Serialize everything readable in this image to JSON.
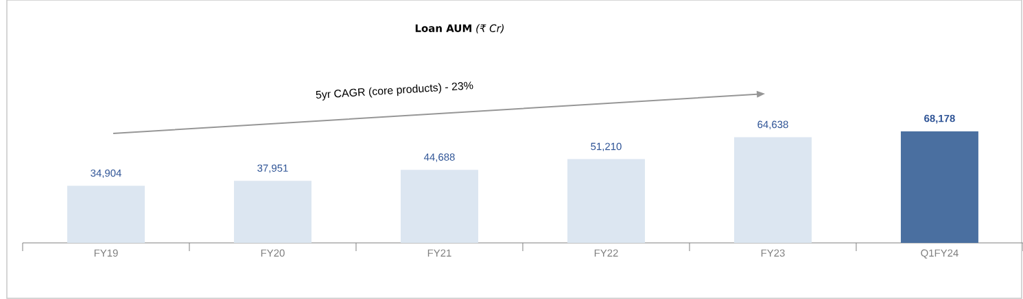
{
  "chart_data": {
    "type": "bar",
    "title": "**Loan AUM** *(₹ Cr)*",
    "categories": [
      "FY19",
      "FY20",
      "FY21",
      "FY22",
      "FY23",
      "Q1FY24"
    ],
    "values": [
      34904,
      37951,
      44688,
      51210,
      64638,
      68178
    ],
    "colors": [
      "#dce6f1",
      "#dce6f1",
      "#dce6f1",
      "#dce6f1",
      "#dce6f1",
      "#4a6fa0"
    ],
    "value_labels": [
      "34,904",
      "37,951",
      "44,688",
      "51,210",
      "64,638",
      "**68,178**"
    ],
    "annotations": [
      "5yr CAGR (core products) - 23%"
    ]
  }
}
